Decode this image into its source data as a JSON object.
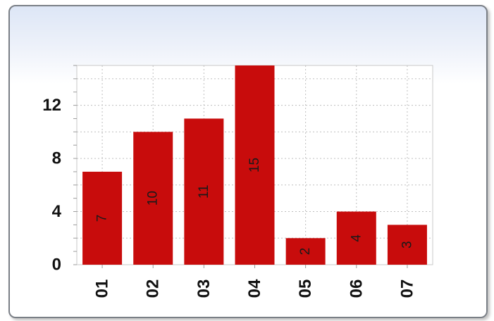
{
  "chart_data": {
    "type": "bar",
    "categories": [
      "01",
      "02",
      "03",
      "04",
      "05",
      "06",
      "07"
    ],
    "values": [
      7,
      10,
      11,
      15,
      2,
      4,
      3
    ],
    "ylim": [
      0,
      15
    ],
    "yticks": [
      0,
      4,
      8,
      12
    ],
    "grid": true,
    "bar_color": "#c80c0c",
    "grid_color": "#bfbfbf",
    "title": "",
    "xlabel": "",
    "ylabel": ""
  }
}
